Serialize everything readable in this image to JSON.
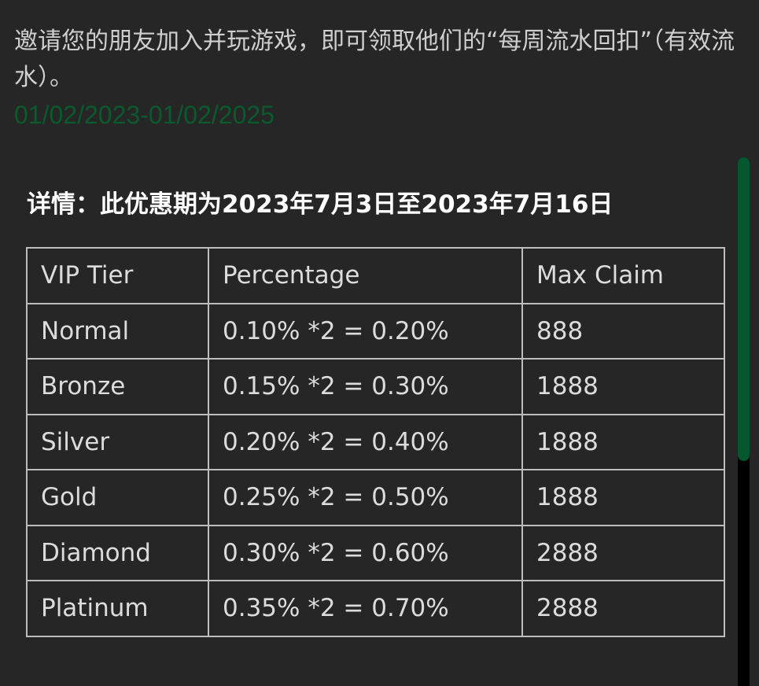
{
  "intro_text": "邀请您的朋友加入并玩游戏，即可领取他们的“每周流水回扣”（有效流水）。",
  "date_range": "01/02/2023-01/02/2025",
  "details_text": "详情：此优惠期为2023年7月3日至2023年7月16日",
  "table": {
    "headers": [
      "VIP Tier",
      "Percentage",
      "Max Claim"
    ],
    "rows": [
      [
        "Normal",
        "0.10% *2 = 0.20%",
        "888"
      ],
      [
        "Bronze",
        "0.15% *2 = 0.30%",
        "1888"
      ],
      [
        "Silver",
        "0.20% *2 = 0.40%",
        "1888"
      ],
      [
        "Gold",
        "0.25% *2 = 0.50%",
        "1888"
      ],
      [
        "Diamond",
        "0.30% *2 = 0.60%",
        "2888"
      ],
      [
        "Platinum",
        "0.35% *2 = 0.70%",
        "2888"
      ]
    ]
  },
  "colors": {
    "accent": "#04582e",
    "date": "#0b5a2e",
    "background": "#262626"
  }
}
